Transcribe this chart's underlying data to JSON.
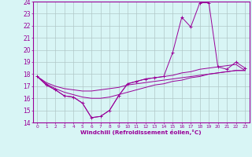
{
  "xlabel": "Windchill (Refroidissement éolien,°C)",
  "x": [
    0,
    1,
    2,
    3,
    4,
    5,
    6,
    7,
    8,
    9,
    10,
    11,
    12,
    13,
    14,
    15,
    16,
    17,
    18,
    19,
    20,
    21,
    22,
    23
  ],
  "line1": [
    17.8,
    17.1,
    16.7,
    16.2,
    16.1,
    15.6,
    14.4,
    14.5,
    15.0,
    16.2,
    17.2,
    17.4,
    17.6,
    17.7,
    17.8,
    19.8,
    22.7,
    21.9,
    23.9,
    23.9,
    18.6,
    18.4,
    19.0,
    18.5
  ],
  "line2": [
    17.8,
    17.1,
    16.7,
    16.2,
    16.1,
    15.6,
    14.4,
    14.5,
    15.0,
    16.2,
    17.2,
    17.4,
    17.6,
    17.7,
    17.8,
    17.9,
    18.1,
    18.2,
    18.4,
    18.5,
    18.6,
    18.7,
    18.8,
    18.3
  ],
  "line3": [
    17.8,
    17.2,
    16.8,
    16.5,
    16.3,
    16.1,
    16.0,
    16.0,
    16.1,
    16.3,
    16.5,
    16.7,
    16.9,
    17.1,
    17.2,
    17.4,
    17.5,
    17.7,
    17.8,
    18.0,
    18.1,
    18.2,
    18.3,
    18.3
  ],
  "line4": [
    17.8,
    17.3,
    17.0,
    16.8,
    16.7,
    16.6,
    16.6,
    16.7,
    16.8,
    16.9,
    17.1,
    17.2,
    17.3,
    17.4,
    17.5,
    17.6,
    17.7,
    17.8,
    17.9,
    18.0,
    18.1,
    18.2,
    18.3,
    18.3
  ],
  "color": "#990099",
  "bg_color": "#d8f5f5",
  "grid_color": "#b0c8c8",
  "ylim": [
    14,
    24
  ],
  "xlim": [
    -0.5,
    23.5
  ],
  "yticks": [
    14,
    15,
    16,
    17,
    18,
    19,
    20,
    21,
    22,
    23,
    24
  ],
  "xticks": [
    0,
    1,
    2,
    3,
    4,
    5,
    6,
    7,
    8,
    9,
    10,
    11,
    12,
    13,
    14,
    15,
    16,
    17,
    18,
    19,
    20,
    21,
    22,
    23
  ]
}
